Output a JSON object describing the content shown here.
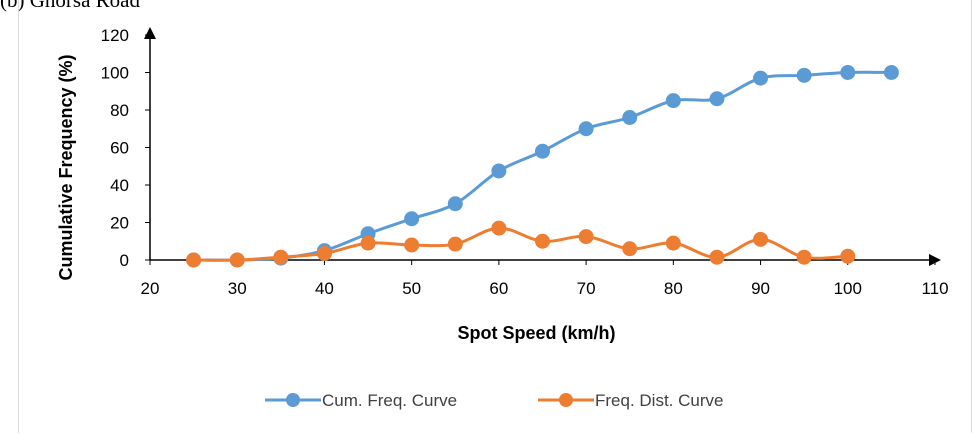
{
  "caption": "(b) Ghorsa Road",
  "chart_data": {
    "type": "line",
    "xlabel": "Spot Speed (km/h)",
    "ylabel": "Cumulative Frequency (%)",
    "xlim": [
      20,
      110
    ],
    "ylim": [
      0,
      120
    ],
    "xticks": [
      "20",
      "30",
      "40",
      "50",
      "60",
      "70",
      "80",
      "90",
      "100",
      "110"
    ],
    "yticks": [
      "0",
      "20",
      "40",
      "60",
      "80",
      "100",
      "120"
    ],
    "grid": false,
    "legend_position": "bottom",
    "series": [
      {
        "name": "Cum. Freq. Curve",
        "color": "#5b9bd5",
        "x": [
          25,
          30,
          35,
          40,
          45,
          50,
          55,
          60,
          65,
          70,
          75,
          80,
          85,
          90,
          95,
          100,
          105
        ],
        "y": [
          0,
          0,
          1,
          5,
          14,
          22,
          30,
          47.5,
          58,
          70,
          76,
          85,
          86,
          97,
          98.5,
          100,
          100
        ]
      },
      {
        "name": "Freq. Dist. Curve",
        "color": "#ed7d31",
        "x": [
          25,
          30,
          35,
          40,
          45,
          50,
          55,
          60,
          65,
          70,
          75,
          80,
          85,
          90,
          95,
          100
        ],
        "y": [
          0,
          0,
          1.5,
          3.5,
          9,
          8,
          8.5,
          17,
          10,
          12.5,
          6,
          9,
          1.5,
          11,
          1.5,
          2
        ]
      }
    ]
  }
}
